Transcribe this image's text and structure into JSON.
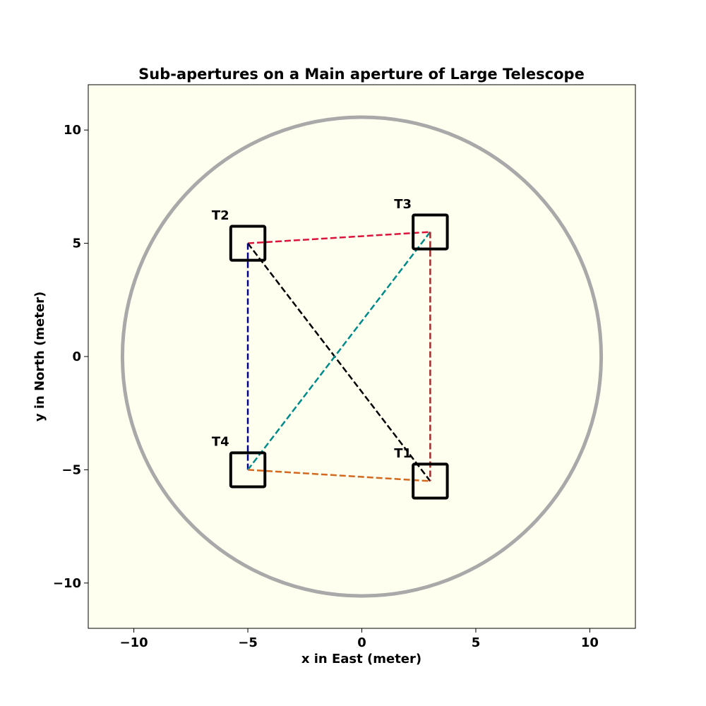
{
  "chart_data": {
    "type": "scatter",
    "title": "Sub-apertures on a Main aperture of Large Telescope",
    "xlabel": "x in East (meter)",
    "ylabel": "y in North (meter)",
    "xlim": [
      -12,
      12
    ],
    "ylim": [
      -12,
      12
    ],
    "xticks": [
      -10,
      -5,
      0,
      5,
      10
    ],
    "yticks": [
      -10,
      -5,
      0,
      5,
      10
    ],
    "tick_labels": [
      "−10",
      "−5",
      "0",
      "5",
      "10"
    ],
    "grid": false,
    "background": "#fffff0",
    "main_aperture": {
      "center": [
        0,
        0
      ],
      "radius": 10.5,
      "color": "#a9a9a9"
    },
    "sub_aperture_size": 1.5,
    "telescopes": [
      {
        "name": "T1",
        "x": 3,
        "y": -5.5
      },
      {
        "name": "T2",
        "x": -5,
        "y": 5
      },
      {
        "name": "T3",
        "x": 3,
        "y": 5.5
      },
      {
        "name": "T4",
        "x": -5,
        "y": -5
      }
    ],
    "baselines": [
      {
        "from": "T2",
        "to": "T3",
        "color": "#dc143c"
      },
      {
        "from": "T2",
        "to": "T1",
        "color": "#000000"
      },
      {
        "from": "T2",
        "to": "T4",
        "color": "#00008b"
      },
      {
        "from": "T3",
        "to": "T4",
        "color": "#008b8b"
      },
      {
        "from": "T3",
        "to": "T1",
        "color": "#a52a2a"
      },
      {
        "from": "T4",
        "to": "T1",
        "color": "#d2691e"
      }
    ]
  }
}
